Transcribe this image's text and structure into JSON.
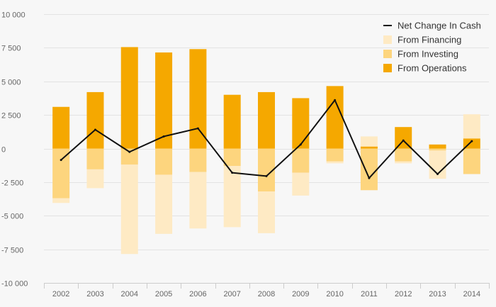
{
  "chart_data": {
    "type": "bar",
    "title": "",
    "xlabel": "",
    "ylabel": "",
    "ylim": [
      -10000,
      10000
    ],
    "yticks": [
      10000,
      7500,
      5000,
      2500,
      0,
      -2500,
      -5000,
      -7500,
      -10000
    ],
    "ytick_labels": [
      "10 000",
      "7 500",
      "5 000",
      "2 500",
      "0",
      "-2 500",
      "-5 000",
      "-7 500",
      "-10 000"
    ],
    "categories": [
      "2002",
      "2003",
      "2004",
      "2005",
      "2006",
      "2007",
      "2008",
      "2009",
      "2010",
      "2011",
      "2012",
      "2013",
      "2014"
    ],
    "stacked": true,
    "series": [
      {
        "name": "From Operations",
        "kind": "bar",
        "color": "#f5a800",
        "values": [
          3100,
          4200,
          7550,
          7150,
          7400,
          4000,
          4200,
          3750,
          4650,
          150,
          1600,
          300,
          750
        ]
      },
      {
        "name": "From Investing",
        "kind": "bar",
        "color": "#fdd57e",
        "values": [
          -3700,
          -1550,
          -1200,
          -1950,
          -1750,
          -1300,
          -3200,
          -1800,
          -950,
          -3100,
          -950,
          -150,
          -1900
        ]
      },
      {
        "name": "From Financing",
        "kind": "bar",
        "color": "#feeac4",
        "values": [
          -350,
          -1400,
          -6650,
          -4400,
          -4200,
          -4550,
          -3100,
          -1700,
          -150,
          750,
          -150,
          -2100,
          1800
        ]
      },
      {
        "name": "Net Change In Cash",
        "kind": "line",
        "color": "#111111",
        "values": [
          -850,
          1400,
          -250,
          900,
          1500,
          -1800,
          -2050,
          300,
          3600,
          -2200,
          600,
          -1900,
          550
        ]
      }
    ],
    "legend": {
      "position": "top-right",
      "entries": [
        "Net Change In Cash",
        "From Financing",
        "From Investing",
        "From Operations"
      ]
    },
    "grid": true
  }
}
